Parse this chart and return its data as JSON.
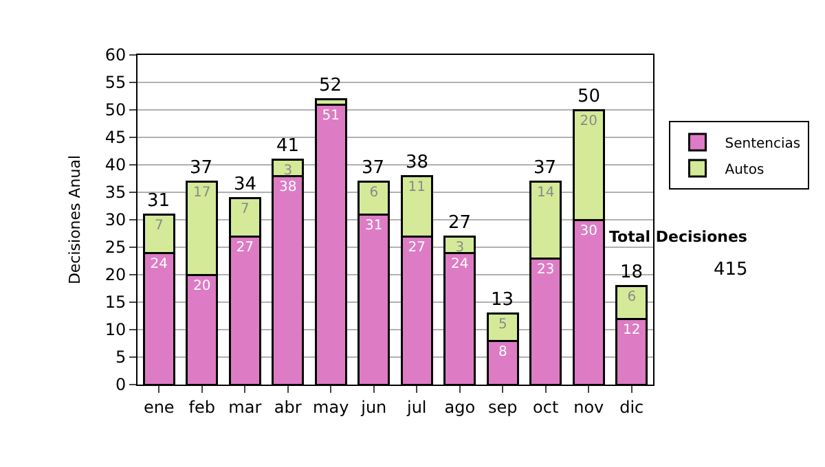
{
  "chart_data": {
    "type": "bar",
    "stacked": true,
    "ylabel": "Decisiones Anual",
    "categories": [
      "ene",
      "feb",
      "mar",
      "abr",
      "may",
      "jun",
      "jul",
      "ago",
      "sep",
      "oct",
      "nov",
      "dic"
    ],
    "series": [
      {
        "name": "Sentencias",
        "color": "#dd7cc4",
        "values": [
          24,
          20,
          27,
          38,
          51,
          31,
          27,
          24,
          8,
          23,
          30,
          12
        ],
        "value_labels": [
          "24",
          "20",
          "27",
          "38",
          "51",
          "31",
          "27",
          "24",
          "8",
          "23",
          "30",
          "12"
        ]
      },
      {
        "name": "Autos",
        "color": "#d4ea98",
        "values": [
          7,
          17,
          7,
          3,
          1,
          6,
          11,
          3,
          5,
          14,
          20,
          6
        ],
        "value_labels": [
          "7",
          "17",
          "7",
          "3",
          null,
          "6",
          "11",
          "3",
          "5",
          "14",
          "20",
          "6"
        ]
      }
    ],
    "totals": [
      "31",
      "37",
      "34",
      "41",
      "52",
      "37",
      "38",
      "27",
      "13",
      "37",
      "50",
      "18"
    ],
    "ylim": [
      0,
      60
    ],
    "yticks": [
      0,
      5,
      10,
      15,
      20,
      25,
      30,
      35,
      40,
      45,
      50,
      55,
      60
    ],
    "grid": "y",
    "legend": "right",
    "annotations": [
      "Total Decisiones",
      "415"
    ]
  }
}
